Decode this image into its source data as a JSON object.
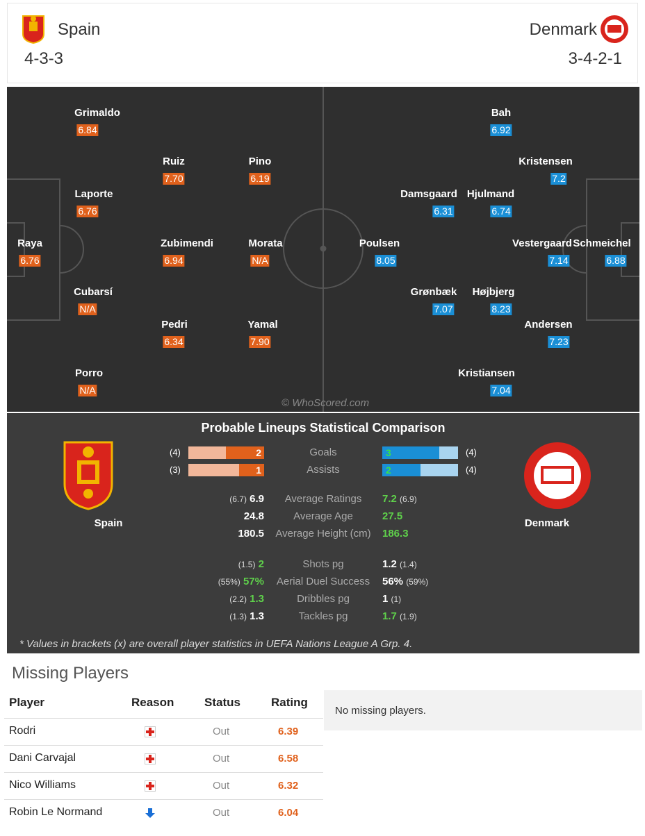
{
  "header": {
    "home": {
      "name": "Spain",
      "formation": "4-3-3"
    },
    "away": {
      "name": "Denmark",
      "formation": "3-4-2-1"
    }
  },
  "pitch": {
    "watermark": "© WhoScored.com",
    "home_players": [
      {
        "name": "Grimaldo",
        "rating": "6.84"
      },
      {
        "name": "Ruiz",
        "rating": "7.70"
      },
      {
        "name": "Pino",
        "rating": "6.19"
      },
      {
        "name": "Laporte",
        "rating": "6.76"
      },
      {
        "name": "Raya",
        "rating": "6.76"
      },
      {
        "name": "Zubimendi",
        "rating": "6.94"
      },
      {
        "name": "Morata",
        "rating": "N/A"
      },
      {
        "name": "Cubarsí",
        "rating": "N/A"
      },
      {
        "name": "Pedri",
        "rating": "6.34"
      },
      {
        "name": "Yamal",
        "rating": "7.90"
      },
      {
        "name": "Porro",
        "rating": "N/A"
      }
    ],
    "away_players": [
      {
        "name": "Bah",
        "rating": "6.92"
      },
      {
        "name": "Kristensen",
        "rating": "7.2"
      },
      {
        "name": "Damsgaard",
        "rating": "6.31"
      },
      {
        "name": "Hjulmand",
        "rating": "6.74"
      },
      {
        "name": "Poulsen",
        "rating": "8.05"
      },
      {
        "name": "Vestergaard",
        "rating": "7.14"
      },
      {
        "name": "Schmeichel",
        "rating": "6.88"
      },
      {
        "name": "Grønbæk",
        "rating": "7.07"
      },
      {
        "name": "Højbjerg",
        "rating": "8.23"
      },
      {
        "name": "Andersen",
        "rating": "7.23"
      },
      {
        "name": "Kristiansen",
        "rating": "7.04"
      }
    ]
  },
  "comparison": {
    "title": "Probable Lineups Statistical Comparison",
    "home_label": "Spain",
    "away_label": "Denmark",
    "bars": [
      {
        "label": "Goals",
        "home_total": "(4)",
        "home": "2",
        "home_fraction": 0.5,
        "away": "3",
        "away_total": "(4)",
        "away_fraction": 0.75
      },
      {
        "label": "Assists",
        "home_total": "(3)",
        "home": "1",
        "home_fraction": 0.33,
        "away": "2",
        "away_total": "(4)",
        "away_fraction": 0.5
      }
    ],
    "group1": [
      {
        "label": "Average Ratings",
        "home_br": "(6.7)",
        "home": "6.9",
        "home_green": false,
        "away": "7.2",
        "away_br": "(6.9)",
        "away_green": true
      },
      {
        "label": "Average Age",
        "home_br": "",
        "home": "24.8",
        "home_green": false,
        "away": "27.5",
        "away_br": "",
        "away_green": true
      },
      {
        "label": "Average Height (cm)",
        "home_br": "",
        "home": "180.5",
        "home_green": false,
        "away": "186.3",
        "away_br": "",
        "away_green": true
      }
    ],
    "group2": [
      {
        "label": "Shots pg",
        "home_br": "(1.5)",
        "home": "2",
        "home_green": true,
        "away": "1.2",
        "away_br": "(1.4)",
        "away_green": false
      },
      {
        "label": "Aerial Duel Success",
        "home_br": "(55%)",
        "home": "57%",
        "home_green": true,
        "away": "56%",
        "away_br": "(59%)",
        "away_green": false
      },
      {
        "label": "Dribbles pg",
        "home_br": "(2.2)",
        "home": "1.3",
        "home_green": true,
        "away": "1",
        "away_br": "(1)",
        "away_green": false
      },
      {
        "label": "Tackles pg",
        "home_br": "(1.3)",
        "home": "1.3",
        "home_green": false,
        "away": "1.7",
        "away_br": "(1.9)",
        "away_green": true
      }
    ],
    "footnote": "* Values in brackets (x) are overall player statistics in UEFA Nations League A Grp. 4."
  },
  "missing": {
    "title": "Missing Players",
    "headers": {
      "player": "Player",
      "reason": "Reason",
      "status": "Status",
      "rating": "Rating"
    },
    "rows": [
      {
        "player": "Rodri",
        "reason_icon": "injury-icon",
        "status": "Out",
        "rating": "6.39"
      },
      {
        "player": "Dani Carvajal",
        "reason_icon": "injury-icon",
        "status": "Out",
        "rating": "6.58"
      },
      {
        "player": "Nico Williams",
        "reason_icon": "injury-icon",
        "status": "Out",
        "rating": "6.32"
      },
      {
        "player": "Robin Le Normand",
        "reason_icon": "suspension-arrow-icon",
        "status": "Out",
        "rating": "6.04"
      }
    ],
    "away_message": "No missing players."
  },
  "colors": {
    "home": "#e0611c",
    "away": "#1a8fd6",
    "green": "#5fd14b"
  }
}
